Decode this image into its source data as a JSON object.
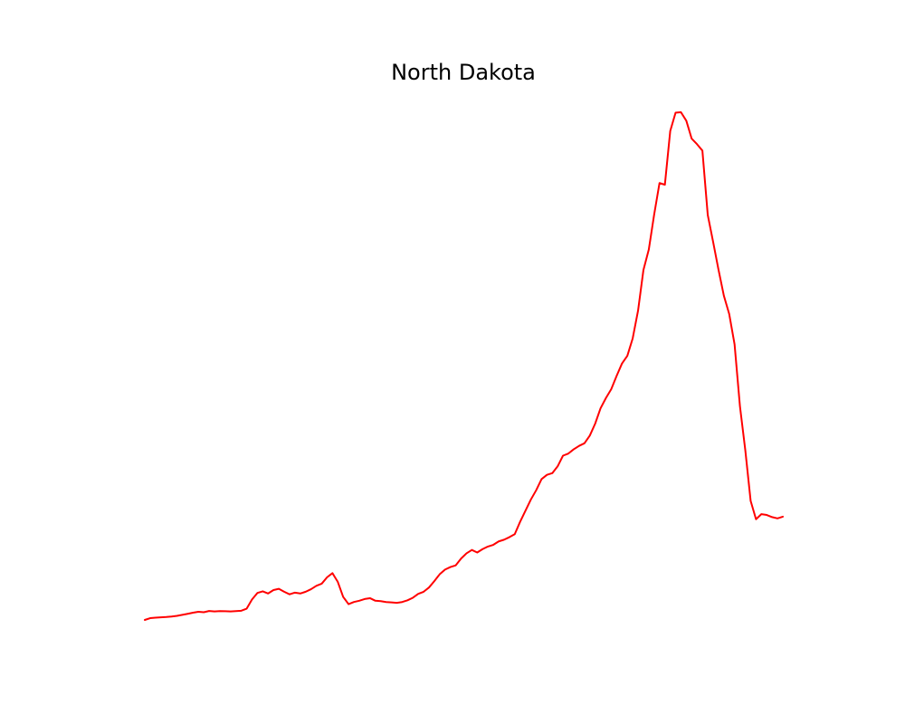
{
  "chart_data": {
    "type": "line",
    "title": "North Dakota",
    "xlabel": "",
    "ylabel": "",
    "axes_visible": false,
    "grid": false,
    "legend": "none",
    "series": [
      {
        "color": "#ff0000",
        "points": [
          [
            0,
            0.0
          ],
          [
            1,
            2.1
          ],
          [
            2,
            2.7
          ],
          [
            3,
            3.0
          ],
          [
            4,
            3.4
          ],
          [
            5,
            4.0
          ],
          [
            6,
            4.8
          ],
          [
            7,
            6.0
          ],
          [
            8,
            7.2
          ],
          [
            9,
            8.5
          ],
          [
            10,
            9.5
          ],
          [
            11,
            9.0
          ],
          [
            12,
            10.5
          ],
          [
            13,
            10.0
          ],
          [
            14,
            10.3
          ],
          [
            15,
            10.2
          ],
          [
            16,
            10.0
          ],
          [
            17,
            10.4
          ],
          [
            18,
            10.8
          ],
          [
            19,
            13.2
          ],
          [
            20,
            24.0
          ],
          [
            21,
            31.6
          ],
          [
            22,
            33.5
          ],
          [
            23,
            31.0
          ],
          [
            24,
            35.0
          ],
          [
            25,
            36.5
          ],
          [
            26,
            33.0
          ],
          [
            27,
            30.0
          ],
          [
            28,
            32.0
          ],
          [
            29,
            31.0
          ],
          [
            30,
            33.0
          ],
          [
            31,
            36.0
          ],
          [
            32,
            40.0
          ],
          [
            33,
            42.5
          ],
          [
            34,
            50.0
          ],
          [
            35,
            54.8
          ],
          [
            36,
            44.5
          ],
          [
            37,
            27.0
          ],
          [
            38,
            18.5
          ],
          [
            39,
            21.0
          ],
          [
            40,
            22.5
          ],
          [
            41,
            24.5
          ],
          [
            42,
            25.5
          ],
          [
            43,
            22.5
          ],
          [
            44,
            22.0
          ],
          [
            45,
            21.0
          ],
          [
            46,
            20.5
          ],
          [
            47,
            20.0
          ],
          [
            48,
            21.0
          ],
          [
            49,
            23.0
          ],
          [
            50,
            26.0
          ],
          [
            51,
            30.5
          ],
          [
            52,
            33.0
          ],
          [
            53,
            38.0
          ],
          [
            54,
            45.5
          ],
          [
            55,
            53.5
          ],
          [
            56,
            59.0
          ],
          [
            57,
            62.0
          ],
          [
            58,
            64.0
          ],
          [
            59,
            72.0
          ],
          [
            60,
            78.0
          ],
          [
            61,
            82.0
          ],
          [
            62,
            79.0
          ],
          [
            63,
            83.0
          ],
          [
            64,
            86.0
          ],
          [
            65,
            88.0
          ],
          [
            66,
            92.0
          ],
          [
            67,
            94.0
          ],
          [
            68,
            97.0
          ],
          [
            69,
            100.5
          ],
          [
            70,
            115.0
          ],
          [
            71,
            128.0
          ],
          [
            72,
            141.0
          ],
          [
            73,
            152.0
          ],
          [
            74,
            165.0
          ],
          [
            75,
            170.0
          ],
          [
            76,
            172.0
          ],
          [
            77,
            180.0
          ],
          [
            78,
            192.5
          ],
          [
            79,
            195.0
          ],
          [
            80,
            200.0
          ],
          [
            81,
            204.0
          ],
          [
            82,
            207.0
          ],
          [
            83,
            216.0
          ],
          [
            84,
            230.0
          ],
          [
            85,
            248.0
          ],
          [
            86,
            260.0
          ],
          [
            87,
            270.5
          ],
          [
            88,
            286.0
          ],
          [
            89,
            300.5
          ],
          [
            90,
            309.5
          ],
          [
            91,
            330.0
          ],
          [
            92,
            362.5
          ],
          [
            93,
            410.0
          ],
          [
            94,
            434.0
          ],
          [
            95,
            475.0
          ],
          [
            96,
            512.0
          ],
          [
            97,
            510.0
          ],
          [
            98,
            573.0
          ],
          [
            99,
            594.5
          ],
          [
            100,
            595.0
          ],
          [
            101,
            585.0
          ],
          [
            102,
            564.0
          ],
          [
            103,
            557.5
          ],
          [
            104,
            550.0
          ],
          [
            105,
            474.5
          ],
          [
            106,
            443.0
          ],
          [
            107,
            410.5
          ],
          [
            108,
            380.0
          ],
          [
            109,
            358.5
          ],
          [
            110,
            323.0
          ],
          [
            111,
            250.5
          ],
          [
            112,
            199.0
          ],
          [
            113,
            139.5
          ],
          [
            114,
            118.0
          ],
          [
            115,
            124.0
          ],
          [
            116,
            123.0
          ],
          [
            117,
            120.5
          ],
          [
            118,
            119.0
          ],
          [
            119,
            121.0
          ]
        ]
      }
    ]
  }
}
